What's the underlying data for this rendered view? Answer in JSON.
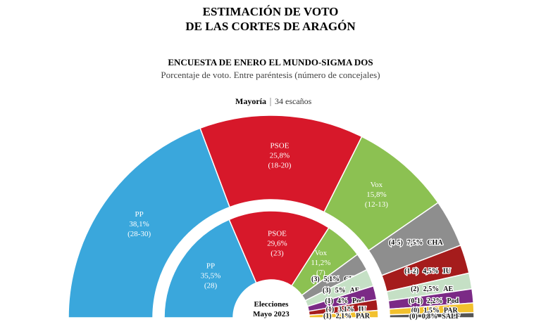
{
  "title": [
    "ESTIMACIÓN DE VOTO",
    "DE LAS CORTES  DE ARAGÓN"
  ],
  "subtitle": "ENCUESTA DE ENERO EL MUNDO-SIGMA DOS",
  "note": "Porcentaje de voto. Entre paréntesis (número de concejales)",
  "majority": {
    "label": "Mayoría",
    "value": "34 escaños"
  },
  "chart_data": [
    {
      "type": "half-donut",
      "categories": [
        "PP",
        "PSOE",
        "Vox",
        "CHA",
        "IU",
        "AE",
        "Pod",
        "PAR",
        "SALF"
      ],
      "values": [
        38.1,
        25.8,
        15.8,
        7.5,
        4.5,
        2.5,
        2.2,
        1.5,
        0.8
      ],
      "value_labels": [
        "38,1%",
        "25,8%",
        "15,8%",
        "7,5%",
        "4,5%",
        "2,5%",
        "2,2%",
        "1,5%",
        "0,8%"
      ],
      "seats": [
        "(28-30)",
        "(18-20)",
        "(12-13)",
        "(4-5)",
        "(1-2)",
        "(2)",
        "(0-1)",
        "(0)",
        "(0)"
      ],
      "colors": [
        "#3aa7dc",
        "#d7182a",
        "#8cc152",
        "#8e8e8e",
        "#a51c1c",
        "#c5e0c5",
        "#7b2a86",
        "#f2c12e",
        "#555555"
      ]
    },
    {
      "type": "half-donut",
      "label": [
        "Elecciones",
        "Mayo 2023"
      ],
      "categories": [
        "PP",
        "PSOE",
        "Vox",
        "CHA",
        "AE",
        "Pod",
        "IU",
        "PAR"
      ],
      "values": [
        35.5,
        29.6,
        11.2,
        5.1,
        5,
        4,
        3.1,
        2.1
      ],
      "value_labels": [
        "35,5%",
        "29,6%",
        "11,2%",
        "5,1%",
        "5%",
        "4%",
        "3,1%",
        "2,1%"
      ],
      "seats": [
        "(28)",
        "(23)",
        "(7)",
        "(3)",
        "(3)",
        "(1)",
        "(1)",
        "(1)"
      ],
      "colors": [
        "#3aa7dc",
        "#d7182a",
        "#8cc152",
        "#8e8e8e",
        "#c5e0c5",
        "#7b2a86",
        "#a51c1c",
        "#f2c12e"
      ]
    }
  ]
}
